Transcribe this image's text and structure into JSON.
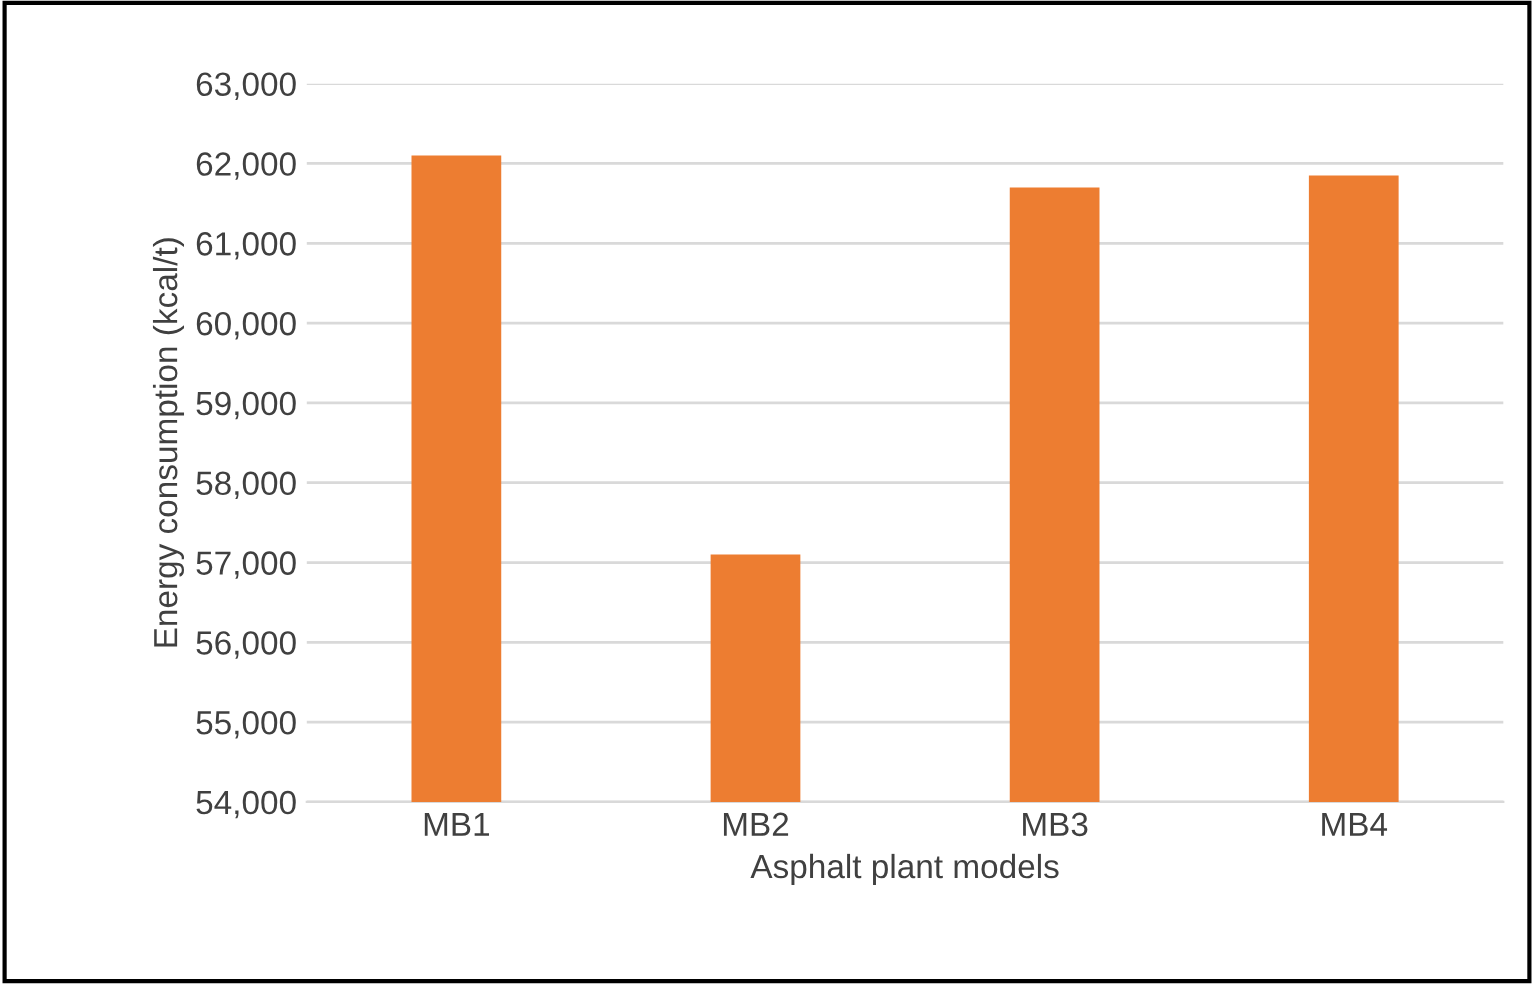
{
  "chart_data": {
    "type": "bar",
    "xlabel": "Asphalt plant models",
    "ylabel": "Energy consumption (kcal/t)",
    "categories": [
      "MB1",
      "MB2",
      "MB3",
      "MB4"
    ],
    "values": [
      62100,
      57100,
      61700,
      61850
    ],
    "color": "#ed7d31",
    "ylim": [
      54000,
      63000
    ],
    "yticks": [
      {
        "value": 54000,
        "label": "54,000"
      },
      {
        "value": 55000,
        "label": "55,000"
      },
      {
        "value": 56000,
        "label": "56,000"
      },
      {
        "value": 57000,
        "label": "57,000"
      },
      {
        "value": 58000,
        "label": "58,000"
      },
      {
        "value": 59000,
        "label": "59,000"
      },
      {
        "value": 60000,
        "label": "60,000"
      },
      {
        "value": 61000,
        "label": "61,000"
      },
      {
        "value": 62000,
        "label": "62,000"
      },
      {
        "value": 63000,
        "label": "63,000"
      }
    ],
    "grid": "y",
    "legend": false
  }
}
